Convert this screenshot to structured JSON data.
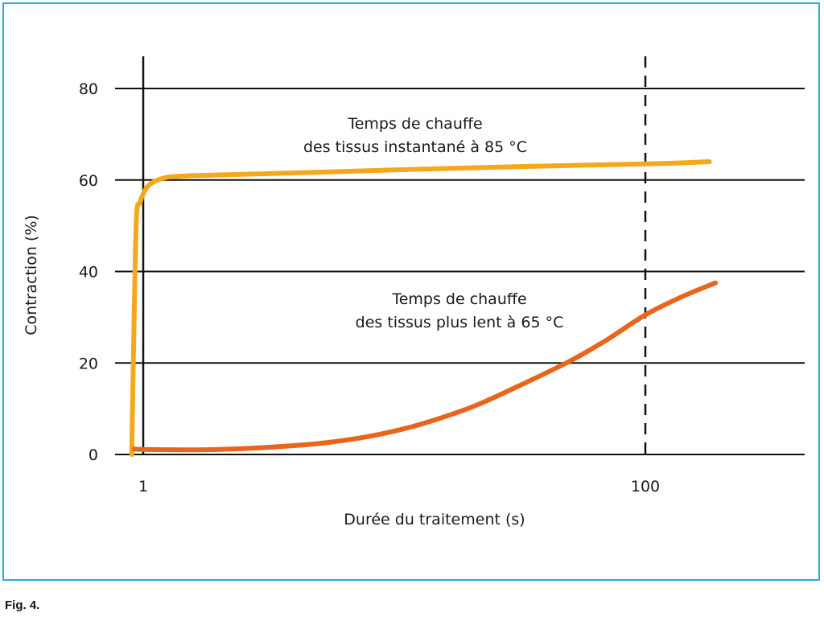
{
  "caption": "Fig. 4.",
  "chart_data": {
    "type": "line",
    "xlabel": "Durée du traitement (s)",
    "ylabel": "Contraction (%)",
    "x_scale": "log",
    "x_ticks": [
      1,
      100
    ],
    "x_reference_line": 100,
    "ylim": [
      0,
      80
    ],
    "y_ticks": [
      0,
      20,
      40,
      60,
      80
    ],
    "grid": "horizontal",
    "colors": {
      "series_1": "#f5a81c",
      "series_2": "#e8651c",
      "frame": "#29abe2"
    },
    "series": [
      {
        "name_lines": [
          "Temps de chauffe",
          "des tissus instantané à 85 °C"
        ],
        "x": [
          0.9,
          0.92,
          0.94,
          0.97,
          1.0,
          1.05,
          1.12,
          1.2,
          1.3,
          1.5,
          2,
          5,
          10,
          30,
          100,
          180
        ],
        "y": [
          0,
          30,
          52,
          55,
          57,
          58.8,
          59.8,
          60.4,
          60.7,
          60.9,
          61.1,
          61.7,
          62.2,
          62.9,
          63.5,
          64
        ]
      },
      {
        "name_lines": [
          "Temps de chauffe",
          "des tissus plus lent à 65 °C"
        ],
        "x": [
          0.92,
          1.0,
          1.5,
          2,
          3,
          5,
          8,
          12,
          20,
          30,
          50,
          70,
          100,
          140,
          190
        ],
        "y": [
          1.2,
          1.1,
          1.0,
          1.1,
          1.5,
          2.4,
          4.0,
          6.2,
          10.2,
          14.5,
          20.4,
          25,
          30.5,
          34.5,
          37.5
        ]
      }
    ]
  }
}
